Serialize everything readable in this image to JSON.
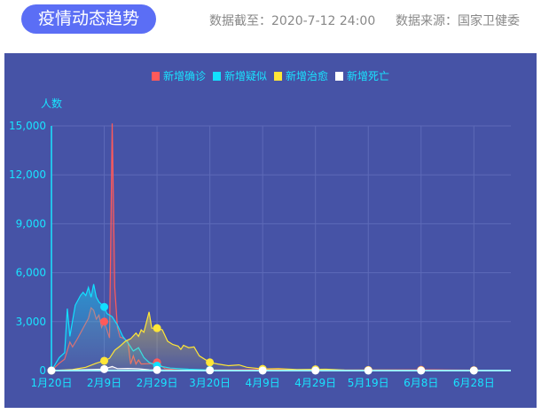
{
  "header": {
    "title": "疫情动态趋势",
    "updated": "数据截至：2020-7-12 24:00",
    "source": "数据来源：国家卫健委"
  },
  "chart_data": {
    "type": "line",
    "ylabel": "人数",
    "ylim": [
      0,
      15000
    ],
    "yticks": [
      "0",
      "3,000",
      "6,000",
      "9,000",
      "12,000",
      "15,000"
    ],
    "yvalues": [
      0,
      3000,
      6000,
      9000,
      12000,
      15000
    ],
    "xlim": [
      "2020-01-20",
      "2020-07-12"
    ],
    "xticks": [
      {
        "date": "2020-01-20",
        "label": "1月20日"
      },
      {
        "date": "2020-02-09",
        "label": "2月9日"
      },
      {
        "date": "2020-02-29",
        "label": "2月29日"
      },
      {
        "date": "2020-03-20",
        "label": "3月20日"
      },
      {
        "date": "2020-04-09",
        "label": "4月9日"
      },
      {
        "date": "2020-04-29",
        "label": "4月29日"
      },
      {
        "date": "2020-05-19",
        "label": "5月19日"
      },
      {
        "date": "2020-06-08",
        "label": "6月8日"
      },
      {
        "date": "2020-06-28",
        "label": "6月28日"
      }
    ],
    "grid": true,
    "legend_position": "top-center",
    "series": [
      {
        "name": "新增确诊",
        "color": "#ff5a5a",
        "points": [
          [
            "2020-01-20",
            0
          ],
          [
            "2020-01-23",
            450
          ],
          [
            "2020-01-25",
            700
          ],
          [
            "2020-01-27",
            1750
          ],
          [
            "2020-01-28",
            1450
          ],
          [
            "2020-01-30",
            2000
          ],
          [
            "2020-02-01",
            2600
          ],
          [
            "2020-02-03",
            3200
          ],
          [
            "2020-02-04",
            3850
          ],
          [
            "2020-02-05",
            3700
          ],
          [
            "2020-02-06",
            3150
          ],
          [
            "2020-02-07",
            3400
          ],
          [
            "2020-02-08",
            2650
          ],
          [
            "2020-02-09",
            3000
          ],
          [
            "2020-02-10",
            2500
          ],
          [
            "2020-02-11",
            2000
          ],
          [
            "2020-02-12",
            15150
          ],
          [
            "2020-02-13",
            5100
          ],
          [
            "2020-02-14",
            2650
          ],
          [
            "2020-02-15",
            2050
          ],
          [
            "2020-02-16",
            2000
          ],
          [
            "2020-02-17",
            1900
          ],
          [
            "2020-02-18",
            1750
          ],
          [
            "2020-02-19",
            400
          ],
          [
            "2020-02-20",
            900
          ],
          [
            "2020-02-21",
            400
          ],
          [
            "2020-02-22",
            650
          ],
          [
            "2020-02-23",
            400
          ],
          [
            "2020-02-25",
            420
          ],
          [
            "2020-02-27",
            430
          ],
          [
            "2020-02-29",
            500
          ],
          [
            "2020-03-03",
            120
          ],
          [
            "2020-03-08",
            40
          ],
          [
            "2020-03-20",
            40
          ],
          [
            "2020-04-09",
            60
          ],
          [
            "2020-04-29",
            20
          ],
          [
            "2020-06-13",
            50
          ],
          [
            "2020-06-20",
            30
          ],
          [
            "2020-07-12",
            10
          ]
        ]
      },
      {
        "name": "新增疑似",
        "color": "#12e0ff",
        "points": [
          [
            "2020-01-20",
            0
          ],
          [
            "2020-01-23",
            800
          ],
          [
            "2020-01-25",
            1100
          ],
          [
            "2020-01-26",
            3800
          ],
          [
            "2020-01-27",
            2100
          ],
          [
            "2020-01-29",
            4000
          ],
          [
            "2020-01-31",
            4600
          ],
          [
            "2020-02-01",
            4800
          ],
          [
            "2020-02-02",
            4600
          ],
          [
            "2020-02-03",
            5100
          ],
          [
            "2020-02-04",
            4500
          ],
          [
            "2020-02-05",
            5300
          ],
          [
            "2020-02-06",
            4500
          ],
          [
            "2020-02-07",
            4200
          ],
          [
            "2020-02-09",
            3900
          ],
          [
            "2020-02-10",
            3500
          ],
          [
            "2020-02-12",
            3300
          ],
          [
            "2020-02-14",
            2800
          ],
          [
            "2020-02-16",
            2100
          ],
          [
            "2020-02-18",
            1700
          ],
          [
            "2020-02-20",
            1200
          ],
          [
            "2020-02-22",
            1400
          ],
          [
            "2020-02-24",
            800
          ],
          [
            "2020-02-26",
            500
          ],
          [
            "2020-02-29",
            300
          ],
          [
            "2020-03-05",
            150
          ],
          [
            "2020-03-12",
            80
          ],
          [
            "2020-03-20",
            40
          ],
          [
            "2020-04-09",
            10
          ],
          [
            "2020-07-12",
            0
          ]
        ]
      },
      {
        "name": "新增治愈",
        "color": "#ffe637",
        "points": [
          [
            "2020-01-20",
            0
          ],
          [
            "2020-01-28",
            60
          ],
          [
            "2020-02-02",
            200
          ],
          [
            "2020-02-06",
            450
          ],
          [
            "2020-02-09",
            600
          ],
          [
            "2020-02-11",
            750
          ],
          [
            "2020-02-13",
            1250
          ],
          [
            "2020-02-15",
            1500
          ],
          [
            "2020-02-17",
            1800
          ],
          [
            "2020-02-19",
            1950
          ],
          [
            "2020-02-21",
            2300
          ],
          [
            "2020-02-22",
            2100
          ],
          [
            "2020-02-23",
            2500
          ],
          [
            "2020-02-24",
            2350
          ],
          [
            "2020-02-26",
            3600
          ],
          [
            "2020-02-27",
            2600
          ],
          [
            "2020-02-29",
            2600
          ],
          [
            "2020-03-02",
            2500
          ],
          [
            "2020-03-04",
            1800
          ],
          [
            "2020-03-06",
            1600
          ],
          [
            "2020-03-08",
            1500
          ],
          [
            "2020-03-09",
            1300
          ],
          [
            "2020-03-10",
            1550
          ],
          [
            "2020-03-12",
            1400
          ],
          [
            "2020-03-14",
            1450
          ],
          [
            "2020-03-16",
            900
          ],
          [
            "2020-03-20",
            500
          ],
          [
            "2020-03-23",
            400
          ],
          [
            "2020-03-27",
            300
          ],
          [
            "2020-03-31",
            350
          ],
          [
            "2020-04-03",
            200
          ],
          [
            "2020-04-09",
            100
          ],
          [
            "2020-04-15",
            120
          ],
          [
            "2020-04-22",
            60
          ],
          [
            "2020-05-03",
            80
          ],
          [
            "2020-05-10",
            30
          ],
          [
            "2020-07-12",
            5
          ]
        ]
      },
      {
        "name": "新增死亡",
        "color": "#ffffff",
        "points": [
          [
            "2020-01-20",
            0
          ],
          [
            "2020-01-28",
            30
          ],
          [
            "2020-02-05",
            70
          ],
          [
            "2020-02-09",
            90
          ],
          [
            "2020-02-12",
            250
          ],
          [
            "2020-02-14",
            120
          ],
          [
            "2020-02-18",
            130
          ],
          [
            "2020-02-22",
            110
          ],
          [
            "2020-02-26",
            50
          ],
          [
            "2020-02-29",
            40
          ],
          [
            "2020-03-10",
            15
          ],
          [
            "2020-04-17",
            0
          ],
          [
            "2020-07-12",
            0
          ]
        ]
      }
    ]
  }
}
